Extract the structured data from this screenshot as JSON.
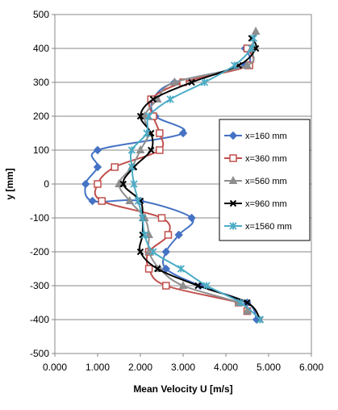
{
  "chart_data": {
    "type": "line",
    "title": "",
    "xlabel": "Mean Velocity U [m/s]",
    "ylabel": "y [mm]",
    "xlim": [
      0,
      6
    ],
    "ylim": [
      -500,
      500
    ],
    "x_ticks": [
      "0.000",
      "1.000",
      "2.000",
      "3.000",
      "4.000",
      "5.000",
      "6.000"
    ],
    "y_ticks": [
      "-500",
      "-400",
      "-300",
      "-200",
      "-100",
      "0",
      "100",
      "200",
      "300",
      "400",
      "500"
    ],
    "grid": "horizontal",
    "legend_position": "right",
    "smoothed": true,
    "series": [
      {
        "name": "x=160 mm",
        "color": "#4472C4",
        "marker": "diamond",
        "points": [
          [
            4.72,
            -400
          ],
          [
            4.5,
            -350
          ],
          [
            3.4,
            -300
          ],
          [
            2.6,
            -250
          ],
          [
            2.6,
            -200
          ],
          [
            2.9,
            -150
          ],
          [
            3.2,
            -100
          ],
          [
            2.0,
            -50
          ],
          [
            0.88,
            -50
          ],
          [
            0.72,
            0
          ],
          [
            1.0,
            50
          ],
          [
            1.0,
            100
          ],
          [
            3.0,
            150
          ],
          [
            2.35,
            200
          ],
          [
            2.3,
            250
          ],
          [
            2.8,
            300
          ],
          [
            4.45,
            350
          ],
          [
            4.45,
            400
          ]
        ]
      },
      {
        "name": "x=360 mm",
        "color": "#C0504D",
        "marker": "square",
        "points": [
          [
            4.5,
            -375
          ],
          [
            4.3,
            -350
          ],
          [
            2.6,
            -300
          ],
          [
            2.2,
            -250
          ],
          [
            2.2,
            -200
          ],
          [
            2.65,
            -150
          ],
          [
            2.5,
            -100
          ],
          [
            1.1,
            -50
          ],
          [
            1.0,
            0
          ],
          [
            1.4,
            50
          ],
          [
            2.45,
            100
          ],
          [
            2.45,
            150
          ],
          [
            2.3,
            200
          ],
          [
            2.25,
            250
          ],
          [
            3.0,
            300
          ],
          [
            4.55,
            350
          ],
          [
            4.5,
            400
          ]
        ]
      },
      {
        "name": "x=560 mm",
        "color": "#8E8E8E",
        "marker": "triangle",
        "points": [
          [
            4.5,
            -375
          ],
          [
            4.3,
            -350
          ],
          [
            3.0,
            -300
          ],
          [
            2.45,
            -250
          ],
          [
            2.2,
            -200
          ],
          [
            2.2,
            -150
          ],
          [
            2.1,
            -100
          ],
          [
            1.75,
            -50
          ],
          [
            1.5,
            0
          ],
          [
            1.8,
            50
          ],
          [
            2.0,
            100
          ],
          [
            2.2,
            150
          ],
          [
            2.1,
            200
          ],
          [
            2.4,
            250
          ],
          [
            2.8,
            300
          ],
          [
            4.5,
            350
          ],
          [
            4.6,
            400
          ],
          [
            4.7,
            450
          ]
        ]
      },
      {
        "name": "x=960 mm",
        "color": "#000000",
        "marker": "x",
        "points": [
          [
            4.8,
            -400
          ],
          [
            4.5,
            -350
          ],
          [
            3.35,
            -300
          ],
          [
            2.4,
            -250
          ],
          [
            2.0,
            -200
          ],
          [
            2.05,
            -150
          ],
          [
            2.05,
            -100
          ],
          [
            2.0,
            -50
          ],
          [
            1.6,
            0
          ],
          [
            1.85,
            50
          ],
          [
            2.25,
            100
          ],
          [
            2.25,
            150
          ],
          [
            2.0,
            200
          ],
          [
            2.3,
            250
          ],
          [
            3.2,
            300
          ],
          [
            4.3,
            350
          ],
          [
            4.7,
            400
          ],
          [
            4.6,
            430
          ]
        ]
      },
      {
        "name": "x=1560 mm",
        "color": "#4BACC6",
        "marker": "star",
        "points": [
          [
            4.8,
            -400
          ],
          [
            4.35,
            -350
          ],
          [
            3.55,
            -300
          ],
          [
            2.95,
            -250
          ],
          [
            2.3,
            -200
          ],
          [
            2.1,
            -150
          ],
          [
            2.05,
            -100
          ],
          [
            1.95,
            -50
          ],
          [
            1.85,
            0
          ],
          [
            1.8,
            50
          ],
          [
            1.8,
            100
          ],
          [
            2.15,
            150
          ],
          [
            2.2,
            200
          ],
          [
            2.7,
            250
          ],
          [
            3.5,
            300
          ],
          [
            4.2,
            350
          ],
          [
            4.6,
            400
          ],
          [
            4.65,
            430
          ]
        ]
      }
    ]
  }
}
